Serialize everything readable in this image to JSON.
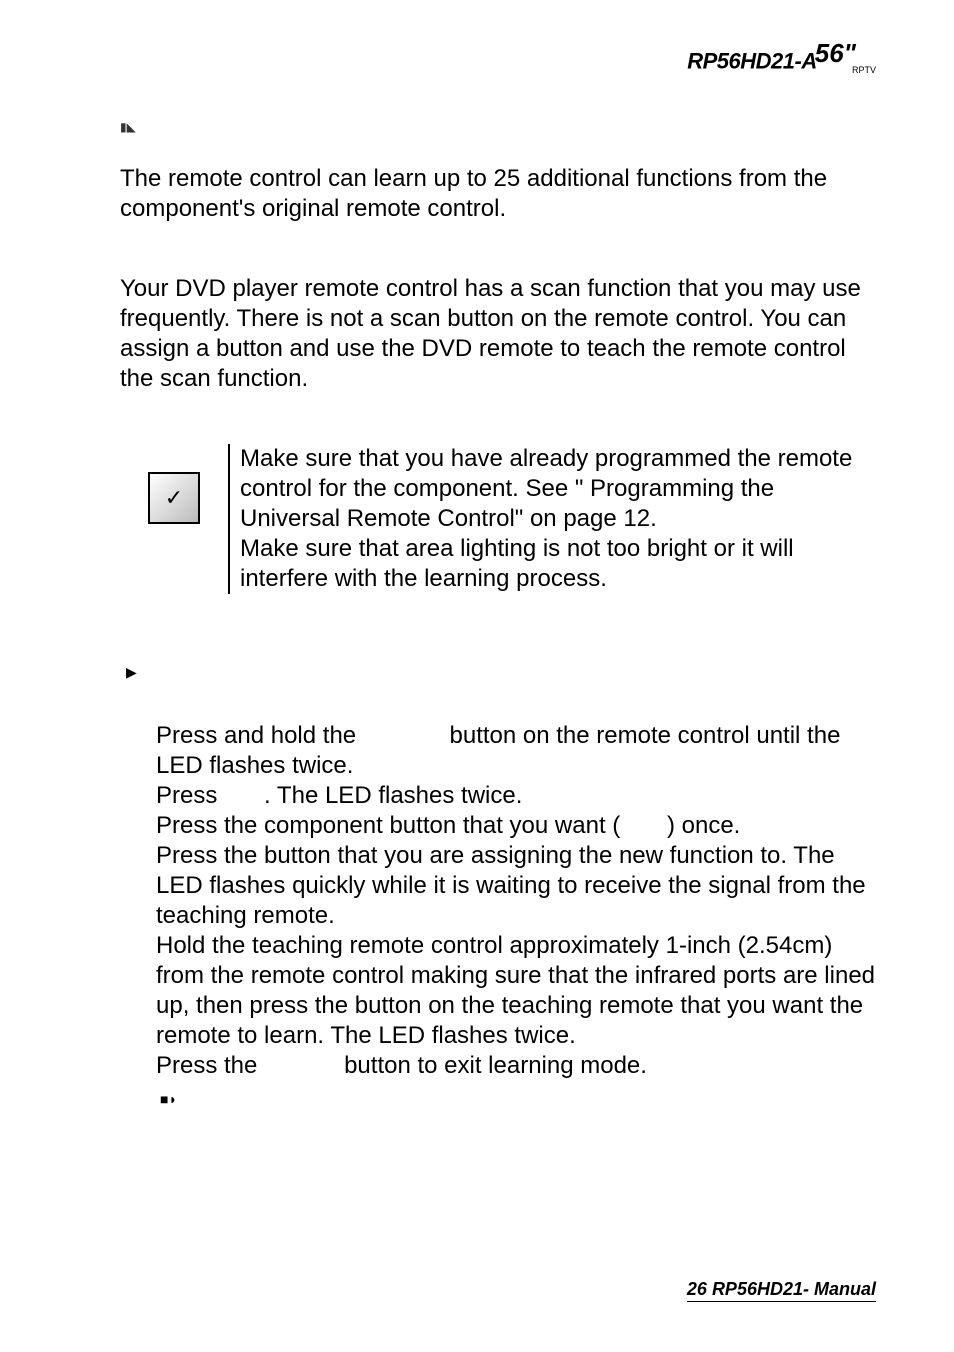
{
  "header": {
    "model": "RP56HD21-A",
    "size": "56\"",
    "subscript": "RPTV"
  },
  "section1": {
    "intro": "The remote control can learn up to 25 additional functions from the component's original remote control.",
    "example": "Your DVD player remote control has a scan function that you may use frequently. There is not a scan button on the remote control. You can assign a button and use the DVD remote to teach the remote control the scan function."
  },
  "note": {
    "line1": "Make sure that you have already programmed the remote control for the component. See \" Programming the Universal Remote Control\" on page 12.",
    "line2": "Make sure that area lighting is not too bright or it will interfere with the learning process."
  },
  "steps": {
    "s1a": "Press and hold the ",
    "s1b": " button on the remote control until the LED flashes twice.",
    "s2a": "Press ",
    "s2b": ". The LED flashes twice.",
    "s3a": "Press the component button that you want (",
    "s3b": ") once.",
    "s4": "Press the button that you are assigning the new function to. The LED flashes quickly while it is waiting to receive the signal from the teaching remote.",
    "s5": "Hold the teaching remote control approximately 1-inch (2.54cm) from the remote control making sure that the infrared ports are lined up, then press the button on the teaching remote that you want the remote to learn. The LED flashes twice.",
    "s6a": "Press the ",
    "s6b": " button to exit learning mode."
  },
  "footer": {
    "page_num": "26",
    "label": "RP56HD21- Manual"
  },
  "style": {
    "body_font_size_pt": 18,
    "body_color": "#000000",
    "background": "#ffffff",
    "checkbox_border": "#000000",
    "checkbox_gradient_start": "#ffffff",
    "checkbox_gradient_end": "#bbbbbb"
  }
}
